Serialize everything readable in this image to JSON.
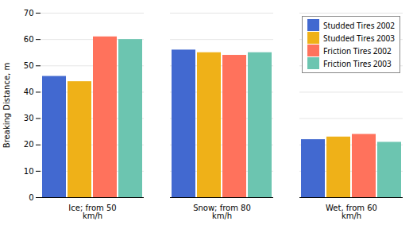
{
  "chart_data": {
    "type": "bar",
    "categories": [
      "Ice; from 50\nkm/h",
      "Snow; from 80\nkm/h",
      "Wet, from 60\nkm/h"
    ],
    "series": [
      {
        "name": "Studded Tires 2002",
        "values": [
          46,
          56,
          22
        ]
      },
      {
        "name": "Studded Tires 2003",
        "values": [
          44,
          55,
          23
        ]
      },
      {
        "name": "Friction Tires 2002",
        "values": [
          61,
          54,
          24
        ]
      },
      {
        "name": "Friction Tires 2003",
        "values": [
          60,
          55,
          21
        ]
      }
    ],
    "ylabel": "Breaking Distance, m",
    "ylim": [
      0,
      70
    ],
    "yticks": [
      0,
      10,
      20,
      30,
      40,
      50,
      60,
      70
    ],
    "grid": true,
    "legend": "upper right"
  }
}
